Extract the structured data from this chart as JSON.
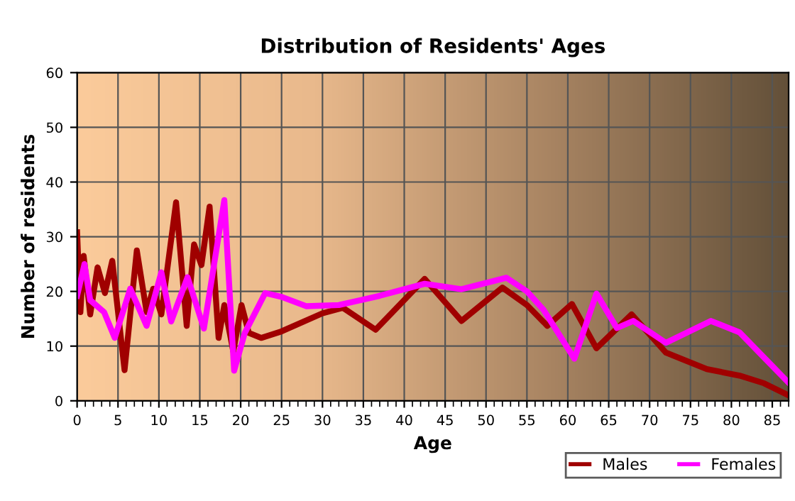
{
  "chart_data": {
    "type": "line",
    "title": "Distribution of Residents' Ages",
    "xlabel": "Age",
    "ylabel": "Number of residents",
    "xlim": [
      0,
      87
    ],
    "xticks": [
      0,
      5,
      10,
      15,
      20,
      25,
      30,
      35,
      40,
      45,
      50,
      55,
      60,
      65,
      70,
      75,
      80,
      85
    ],
    "ylim": [
      0,
      60
    ],
    "yticks": [
      0,
      10,
      20,
      30,
      40,
      50,
      60
    ],
    "grid": true,
    "legend": "bottom right",
    "line_style": "solid",
    "marker": "none",
    "series": [
      {
        "name": "Males",
        "color": "#a00000",
        "x": [
          0,
          0.4,
          0.8,
          1.6,
          2.5,
          3.4,
          4.3,
          5.8,
          7.3,
          8.5,
          9.3,
          10.3,
          12.1,
          13.4,
          14.3,
          15.2,
          16.2,
          17.3,
          18.0,
          19.1,
          20.1,
          21,
          22.5,
          25,
          30,
          32.5,
          36.5,
          42.5,
          47,
          52,
          55,
          57.5,
          60.5,
          63.5,
          67.8,
          72,
          77,
          81,
          84,
          87
        ],
        "values": [
          30.8,
          16.2,
          26.5,
          15.8,
          24.4,
          19.7,
          25.6,
          5.6,
          27.5,
          16.2,
          20.5,
          15.8,
          36.3,
          13.7,
          28.6,
          24.8,
          35.5,
          11.5,
          17.5,
          9,
          17.5,
          12.4,
          11.5,
          12.7,
          16,
          17,
          13,
          22.3,
          14.6,
          20.7,
          17.5,
          13.7,
          17.7,
          9.6,
          15.8,
          8.8,
          5.8,
          4.6,
          3.2,
          1
        ]
      },
      {
        "name": "Females",
        "color": "#ff00ff",
        "x": [
          0,
          0.9,
          1.6,
          3.3,
          4.6,
          6.5,
          8.5,
          10.3,
          11.5,
          13.5,
          15.5,
          18,
          19.2,
          20.5,
          23,
          25,
          28,
          32,
          37,
          42.5,
          47,
          52.5,
          55,
          57,
          60.8,
          63.5,
          66,
          68,
          72,
          77.5,
          81,
          87
        ],
        "values": [
          19.2,
          25,
          18.4,
          16.2,
          11.5,
          20.5,
          13.7,
          23.5,
          14.5,
          22.6,
          13.2,
          36.7,
          5.5,
          12.4,
          19.7,
          19,
          17.3,
          17.5,
          19.2,
          21.4,
          20.4,
          22.5,
          20,
          16.7,
          7.7,
          19.6,
          13.3,
          14.6,
          10.6,
          14.6,
          12.5,
          3.3
        ]
      }
    ]
  }
}
